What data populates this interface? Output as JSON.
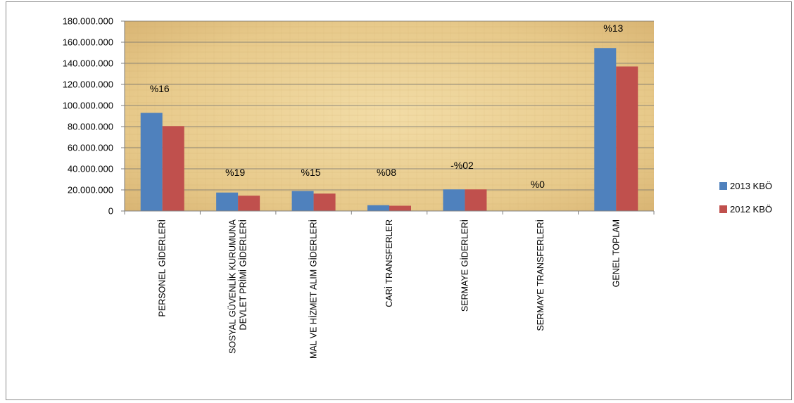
{
  "chart_data": {
    "type": "bar",
    "categories": [
      [
        "PERSONEL GİDERLERİ"
      ],
      [
        "SOSYAL GÜVENLİK KURUMUNA",
        "DEVLET PRİMİ GİDERLERİ"
      ],
      [
        "MAL VE HİZMET ALIM GİDERLERİ"
      ],
      [
        "CARİ TRANSFERLER"
      ],
      [
        "SERMAYE GİDERLERİ"
      ],
      [
        "SERMAYE TRANSFERLERİ"
      ],
      [
        "GENEL TOPLAM"
      ]
    ],
    "series": [
      {
        "name": "2013 KBÖ",
        "color": "#4f81bd",
        "values": [
          93000000,
          17500000,
          19000000,
          5500000,
          20500000,
          0,
          154500000
        ]
      },
      {
        "name": "2012 KBÖ",
        "color": "#c0504d",
        "values": [
          80500000,
          14500000,
          16500000,
          5000000,
          20500000,
          0,
          137000000
        ]
      }
    ],
    "annotations": [
      "%16",
      "%19",
      "%15",
      "%08",
      "-%02",
      "%0",
      "%13"
    ],
    "ylim": [
      0,
      180000000
    ],
    "yticks": [
      "0",
      "20.000.000",
      "40.000.000",
      "60.000.000",
      "80.000.000",
      "100.000.000",
      "120.000.000",
      "140.000.000",
      "160.000.000",
      "180.000.000"
    ],
    "grid": true,
    "legend_position": "right",
    "plot_background": "#e8cc8f"
  }
}
